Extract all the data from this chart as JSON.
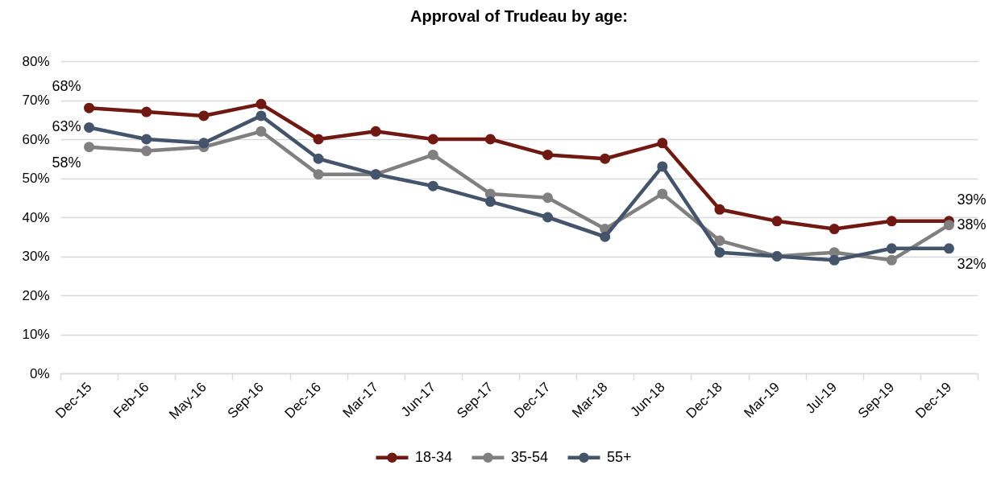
{
  "chart_data": {
    "type": "line",
    "title": "Approval of Trudeau by age:",
    "categories": [
      "Dec-15",
      "Feb-16",
      "May-16",
      "Sep-16",
      "Dec-16",
      "Mar-17",
      "Jun-17",
      "Sep-17",
      "Dec-17",
      "Mar-18",
      "Jun-18",
      "Dec-18",
      "Mar-19",
      "Jul-19",
      "Sep-19",
      "Dec-19"
    ],
    "series": [
      {
        "name": "18-34",
        "color": "#701912",
        "values": [
          68,
          67,
          66,
          69,
          60,
          62,
          60,
          60,
          56,
          55,
          59,
          42,
          39,
          37,
          39,
          39
        ],
        "value_labels": [
          "68%",
          null,
          null,
          null,
          null,
          null,
          null,
          null,
          null,
          null,
          null,
          null,
          null,
          null,
          null,
          "39%"
        ]
      },
      {
        "name": "35-54",
        "color": "#808080",
        "values": [
          58,
          57,
          58,
          62,
          51,
          51,
          56,
          46,
          45,
          37,
          46,
          34,
          30,
          31,
          29,
          38
        ],
        "value_labels": [
          "58%",
          null,
          null,
          null,
          null,
          null,
          null,
          null,
          null,
          null,
          null,
          null,
          null,
          null,
          null,
          "38%"
        ]
      },
      {
        "name": "55+",
        "color": "#44546a",
        "values": [
          63,
          60,
          59,
          66,
          55,
          51,
          48,
          44,
          40,
          35,
          53,
          31,
          30,
          29,
          32,
          32
        ],
        "value_labels": [
          "63%",
          null,
          null,
          null,
          null,
          null,
          null,
          null,
          null,
          null,
          null,
          null,
          null,
          null,
          null,
          "32%"
        ]
      }
    ],
    "ylim": [
      0,
      80
    ],
    "yticks": [
      {
        "value": 0,
        "label": "0%"
      },
      {
        "value": 10,
        "label": "10%"
      },
      {
        "value": 20,
        "label": "20%"
      },
      {
        "value": 30,
        "label": "30%"
      },
      {
        "value": 40,
        "label": "40%"
      },
      {
        "value": 50,
        "label": "50%"
      },
      {
        "value": 60,
        "label": "60%"
      },
      {
        "value": 70,
        "label": "70%"
      },
      {
        "value": 80,
        "label": "80%"
      }
    ],
    "grid": "y",
    "legend": "bottom",
    "marker": "circle",
    "line_style": "solid"
  }
}
